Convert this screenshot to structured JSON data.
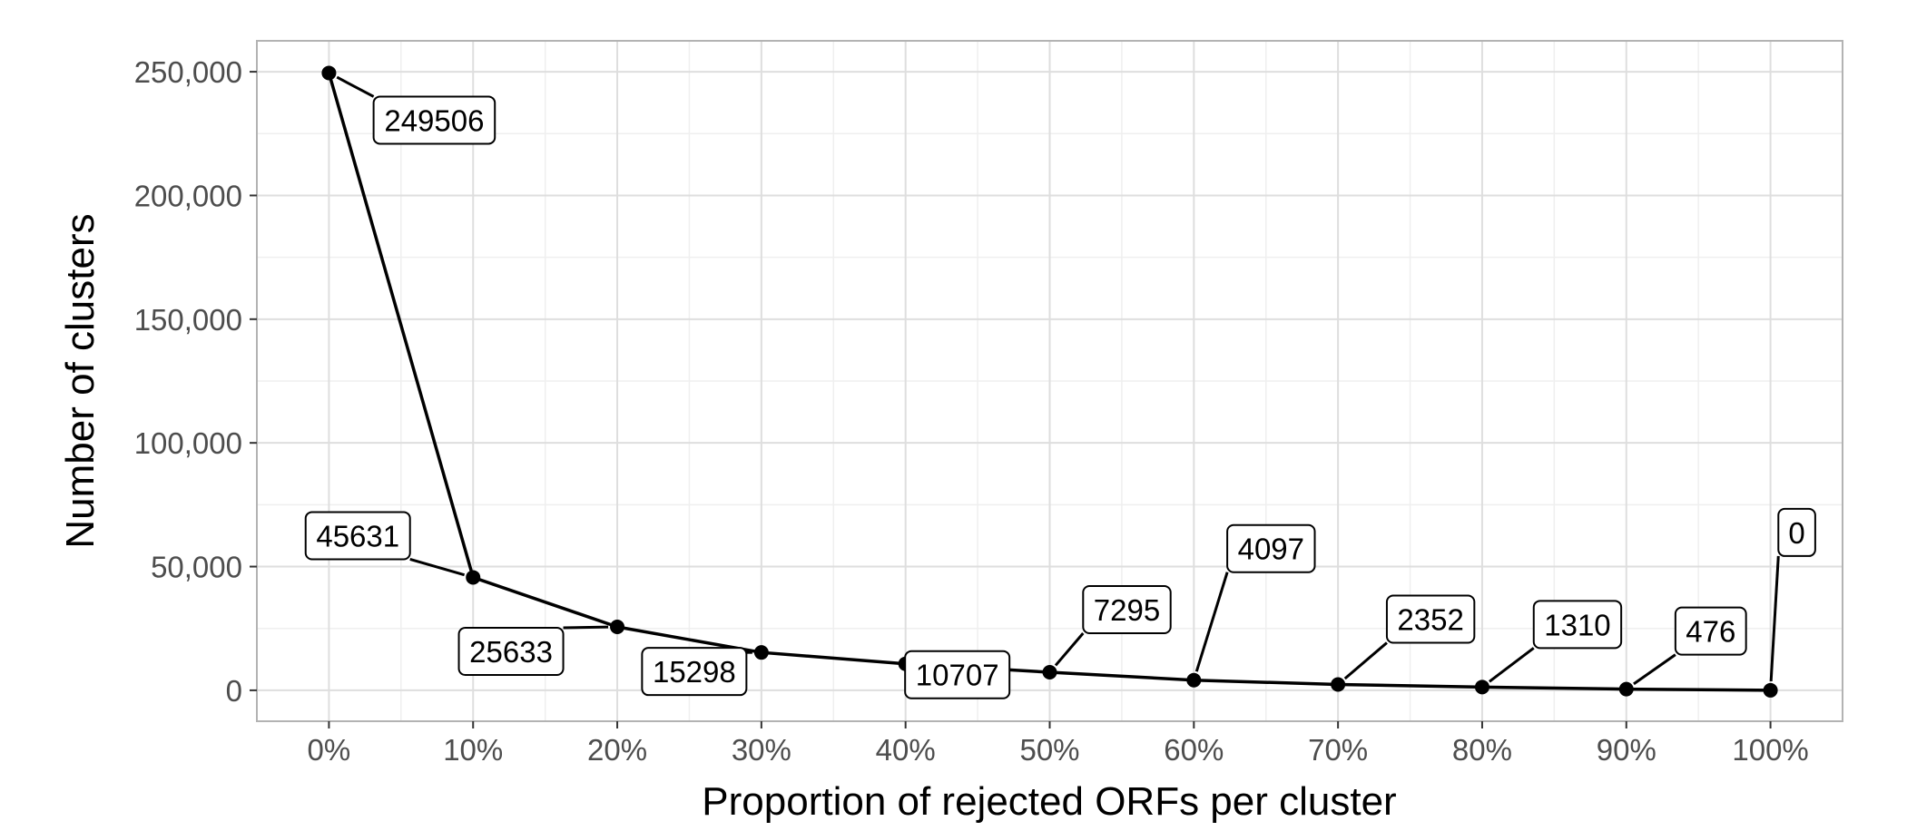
{
  "chart_data": {
    "type": "line",
    "title": "",
    "xlabel": "Proportion of rejected ORFs per cluster",
    "ylabel": "Number of clusters",
    "x": [
      0,
      10,
      20,
      30,
      40,
      50,
      60,
      70,
      80,
      90,
      100
    ],
    "x_tick_labels": [
      "0%",
      "10%",
      "20%",
      "30%",
      "40%",
      "50%",
      "60%",
      "70%",
      "80%",
      "90%",
      "100%"
    ],
    "y_tick_values": [
      0,
      50000,
      100000,
      150000,
      200000,
      250000
    ],
    "y_tick_labels": [
      "0",
      "50,000",
      "100,000",
      "150,000",
      "200,000",
      "250,000"
    ],
    "xlim": [
      -5,
      105
    ],
    "ylim": [
      -12500,
      262500
    ],
    "grid": true,
    "series": [
      {
        "values": [
          249506,
          45631,
          25633,
          15298,
          10707,
          7295,
          4097,
          2352,
          1310,
          476,
          0
        ],
        "data_labels": [
          "249506",
          "45631",
          "25633",
          "15298",
          "10707",
          "7295",
          "4097",
          "2352",
          "1310",
          "476",
          "0"
        ],
        "color": "#000000"
      }
    ]
  },
  "colors": {
    "panel_border": "#b3b3b3",
    "grid_major": "#dedede",
    "grid_minor": "#efefef",
    "line": "#000000",
    "tick_text": "#4d4d4d"
  }
}
